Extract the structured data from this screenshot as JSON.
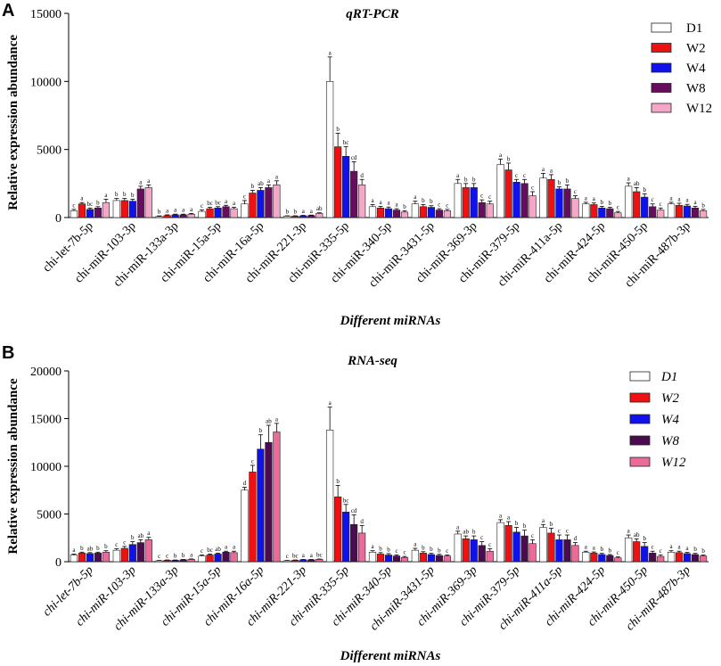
{
  "chart_data": [
    {
      "type": "bar",
      "panel_label": "A",
      "title": "qRT-PCR",
      "xlabel": "Different miRNAs",
      "ylabel_parts": [
        "Relative",
        "expression abundance"
      ],
      "ylim": [
        0,
        15000
      ],
      "yticks": [
        "0",
        "5000",
        "10000",
        "15000"
      ],
      "italic_categories": false,
      "italic_legend": false,
      "categories": [
        "chi-let-7b-5p",
        "chi-miR-103-3p",
        "chi-miR-133a-3p",
        "chi-miR-15a-5p",
        "chi-miR-16a-5p",
        "chi-miR-221-3p",
        "chi-miR-335-5p",
        "chi-miR-340-5p",
        "chi-miR-3431-5p",
        "chi-miR-369-3p",
        "chi-miR-379-5p",
        "chi-miR-411a-5p",
        "chi-miR-424-5p",
        "chi-miR-450-5p",
        "chi-miR-487b-3p"
      ],
      "series": [
        {
          "name": "D1",
          "color": "#ffffff",
          "values": [
            500,
            1250,
            80,
            450,
            1000,
            100,
            10000,
            800,
            1000,
            2500,
            3900,
            2900,
            1000,
            2300,
            1000
          ],
          "errors": [
            100,
            150,
            40,
            100,
            250,
            30,
            1800,
            150,
            200,
            300,
            400,
            350,
            120,
            250,
            120
          ],
          "letters": [
            "c",
            "b",
            "b",
            "c",
            "c",
            "b",
            "a",
            "a",
            "a",
            "a",
            "a",
            "a",
            "a",
            "a",
            "a"
          ]
        },
        {
          "name": "W2",
          "color": "#ee1111",
          "values": [
            1000,
            1250,
            150,
            650,
            1800,
            100,
            5200,
            700,
            800,
            2200,
            3500,
            2800,
            950,
            1900,
            900
          ],
          "errors": [
            100,
            150,
            50,
            100,
            200,
            30,
            1000,
            120,
            150,
            300,
            500,
            350,
            120,
            300,
            150
          ],
          "letters": [
            "a",
            "b",
            "a",
            "bc",
            "b",
            "b",
            "b",
            "a",
            "b",
            "b",
            "b",
            "a",
            "a",
            "ab",
            "a"
          ]
        },
        {
          "name": "W4",
          "color": "#1111ee",
          "values": [
            600,
            1200,
            200,
            700,
            2000,
            130,
            4500,
            650,
            750,
            2200,
            2600,
            2100,
            700,
            1500,
            850
          ],
          "errors": [
            100,
            150,
            50,
            100,
            200,
            30,
            700,
            120,
            120,
            300,
            200,
            150,
            120,
            250,
            120
          ],
          "letters": [
            "bc",
            "b",
            "a",
            "bc",
            "ab",
            "a",
            "bc",
            "a",
            "b",
            "b",
            "c",
            "b",
            "b",
            "b",
            "a"
          ]
        },
        {
          "name": "W8",
          "color": "#660e5e",
          "values": [
            700,
            2100,
            200,
            800,
            2200,
            150,
            3400,
            550,
            550,
            1100,
            2500,
            2100,
            650,
            800,
            700
          ],
          "errors": [
            100,
            200,
            50,
            100,
            200,
            30,
            700,
            100,
            100,
            200,
            300,
            300,
            100,
            200,
            120
          ],
          "letters": [
            "b",
            "a",
            "a",
            "a",
            "a",
            "a",
            "cd",
            "a",
            "c",
            "c",
            "c",
            "b",
            "b",
            "c",
            "a"
          ]
        },
        {
          "name": "W12",
          "color": "#f4a7c6",
          "values": [
            1100,
            2200,
            250,
            650,
            2400,
            300,
            2400,
            400,
            500,
            1000,
            1600,
            1400,
            350,
            550,
            500
          ],
          "errors": [
            250,
            200,
            50,
            100,
            300,
            50,
            400,
            100,
            100,
            200,
            300,
            200,
            100,
            150,
            100
          ],
          "letters": [
            "a",
            "a",
            "a",
            "a",
            "a",
            "ab",
            "d",
            "b",
            "c",
            "c",
            "c",
            "c",
            "c",
            "c",
            "b"
          ]
        }
      ]
    },
    {
      "type": "bar",
      "panel_label": "B",
      "title": "RNA-seq",
      "xlabel": "Different miRNAs",
      "ylabel_parts": [
        "Relative expression abundance"
      ],
      "ylim": [
        0,
        20000
      ],
      "yticks": [
        "0",
        "5000",
        "10000",
        "15000",
        "20000"
      ],
      "italic_categories": true,
      "italic_legend": true,
      "categories": [
        "chi-let-7b-5p",
        "chi-miR-103-3p",
        "chi-miR-133a-3p",
        "chi-miR-15a-5p",
        "chi-miR-16a-5p",
        "chi-miR-221-3p",
        "chi-miR-335-5p",
        "chi-miR-340-5p",
        "chi-miR-3431-5p",
        "chi-miR-369-3p",
        "chi-miR-379-5p",
        "chi-miR-411a-5p",
        "chi-miR-424-5p",
        "chi-miR-450-5p",
        "chi-miR-487b-3p"
      ],
      "series": [
        {
          "name": "D1",
          "color": "#ffffff",
          "values": [
            700,
            1200,
            100,
            600,
            7500,
            100,
            13800,
            1000,
            1200,
            2900,
            4100,
            3600,
            1000,
            2500,
            1000
          ],
          "errors": [
            100,
            150,
            30,
            100,
            300,
            30,
            2400,
            150,
            200,
            300,
            300,
            300,
            100,
            300,
            150
          ],
          "letters": [
            "a",
            "c",
            "c",
            "c",
            "d",
            "c",
            "a",
            "a",
            "a",
            "a",
            "a",
            "a",
            "a",
            "a",
            "a"
          ]
        },
        {
          "name": "W2",
          "color": "#ee1111",
          "values": [
            900,
            1400,
            150,
            700,
            9400,
            150,
            6800,
            800,
            900,
            2400,
            3800,
            3000,
            900,
            2100,
            950
          ],
          "errors": [
            100,
            200,
            30,
            100,
            700,
            30,
            1200,
            150,
            150,
            300,
            400,
            500,
            120,
            300,
            150
          ],
          "letters": [
            "b",
            "c",
            "c",
            "bc",
            "c",
            "bc",
            "b",
            "b",
            "b",
            "ab",
            "a",
            "b",
            "a",
            "ab",
            "a"
          ]
        },
        {
          "name": "W4",
          "color": "#1111ee",
          "values": [
            850,
            1800,
            150,
            800,
            11800,
            200,
            5200,
            700,
            750,
            2300,
            3100,
            2300,
            750,
            1600,
            850
          ],
          "errors": [
            100,
            300,
            30,
            100,
            1500,
            30,
            800,
            150,
            120,
            400,
            500,
            500,
            120,
            400,
            120
          ],
          "letters": [
            "ab",
            "b",
            "b",
            "ab",
            "b",
            "a",
            "bc",
            "b",
            "b",
            "b",
            "b",
            "c",
            "b",
            "b",
            "a"
          ]
        },
        {
          "name": "W8",
          "color": "#4a0c4e",
          "values": [
            900,
            2000,
            200,
            1000,
            12500,
            200,
            3900,
            600,
            650,
            1700,
            2700,
            2300,
            650,
            900,
            750
          ],
          "errors": [
            100,
            300,
            30,
            100,
            1800,
            30,
            1000,
            120,
            120,
            400,
            600,
            500,
            100,
            200,
            120
          ],
          "letters": [
            "b",
            "ab",
            "b",
            "a",
            "ab",
            "a",
            "cd",
            "c",
            "b",
            "c",
            "b",
            "c",
            "b",
            "c",
            "b"
          ]
        },
        {
          "name": "W12",
          "color": "#ec6a9a",
          "values": [
            1000,
            2300,
            250,
            950,
            13600,
            250,
            3000,
            450,
            600,
            1100,
            1900,
            1700,
            400,
            550,
            600
          ],
          "errors": [
            150,
            250,
            40,
            150,
            900,
            30,
            800,
            100,
            100,
            250,
            400,
            300,
            100,
            150,
            100
          ],
          "letters": [
            "b",
            "a",
            "a",
            "a",
            "a",
            "bc",
            "d",
            "c",
            "c",
            "c",
            "c",
            "d",
            "c",
            "c",
            "b"
          ]
        }
      ]
    }
  ]
}
